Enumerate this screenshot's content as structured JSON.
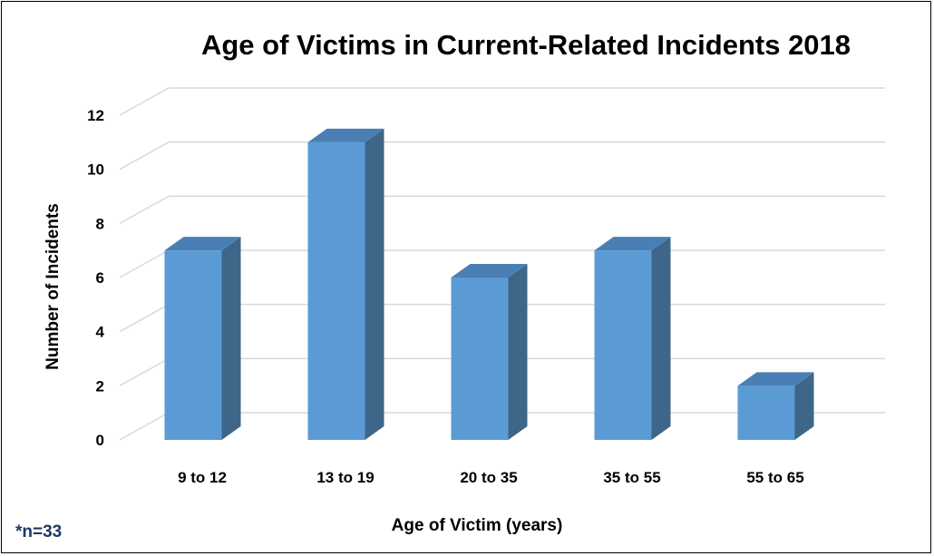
{
  "chart_data": {
    "type": "bar",
    "title": "Age of Victims in Current-Related Incidents 2018",
    "xlabel": "Age of Victim (years)",
    "ylabel": "Number of Incidents",
    "categories": [
      "9 to 12",
      "13 to 19",
      "20 to 35",
      "35 to 55",
      "55 to 65"
    ],
    "values": [
      7,
      11,
      6,
      7,
      2
    ],
    "ylim": [
      0,
      12
    ],
    "yticks": [
      "0",
      "2",
      "4",
      "6",
      "8",
      "10",
      "12"
    ],
    "grid": true,
    "style": "3d-column",
    "colors": {
      "front": "#5b9bd5",
      "side": "#3d6689",
      "top": "#4a7fb5",
      "grid": "#d9d9d9"
    }
  },
  "note": {
    "text": "*n=33",
    "color": "#1f3864"
  }
}
